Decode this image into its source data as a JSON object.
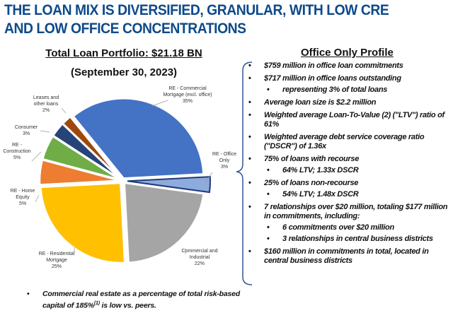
{
  "title": {
    "line1": "THE LOAN MIX IS DIVERSIFIED, GRANULAR, WITH LOW CRE",
    "line2": "AND LOW OFFICE CONCENTRATIONS"
  },
  "chart_data": {
    "type": "pie",
    "title": "Total Loan Portfolio: $21.18 BN",
    "subtitle": "(September 30, 2023)",
    "slices": [
      {
        "label_lines": [
          "RE - Commercial",
          "Mortgage (excl. office)"
        ],
        "pct_label": "35%",
        "value": 35,
        "color": "#4472C4"
      },
      {
        "label_lines": [
          "RE - Office",
          "Only"
        ],
        "pct_label": "3%",
        "value": 3,
        "color": "#8FAADC",
        "outline": "#1F3C7A",
        "highlighted": true
      },
      {
        "label_lines": [
          "Commercial and",
          "Industrial"
        ],
        "pct_label": "22%",
        "value": 22,
        "color": "#A5A5A5"
      },
      {
        "label_lines": [
          "RE - Residential",
          "Mortgage"
        ],
        "pct_label": "25%",
        "value": 25,
        "color": "#FFC000"
      },
      {
        "label_lines": [
          "RE - Home",
          "Equity"
        ],
        "pct_label": "5%",
        "value": 5,
        "color": "#ED7D31"
      },
      {
        "label_lines": [
          "RE -",
          "Construction"
        ],
        "pct_label": "5%",
        "value": 5,
        "color": "#70AD47"
      },
      {
        "label_lines": [
          "Consumer"
        ],
        "pct_label": "3%",
        "value": 3,
        "color": "#264478"
      },
      {
        "label_lines": [
          "Leases and",
          "other loans"
        ],
        "pct_label": "2%",
        "value": 2,
        "color": "#9E480E"
      }
    ]
  },
  "footnote": "Commercial real estate as a percentage of total risk-based capital of 185%(1) is low vs. peers.",
  "footnote_parts": {
    "a": "Commercial real estate as a percentage of total risk-based capital of 185%",
    "sup": "(1)",
    "b": " is low vs. peers."
  },
  "profile": {
    "title": "Office Only Profile",
    "bracket_color": "#2F5597",
    "bullets": [
      {
        "text": "$759 million in office loan commitments",
        "level": 1
      },
      {
        "text": "$717 million in office loans outstanding",
        "level": 1
      },
      {
        "text": "representing 3% of total loans",
        "level": 2
      },
      {
        "text": "Average loan size is $2.2 million",
        "level": 1
      },
      {
        "text": "Weighted average Loan-To-Value (2) (\"LTV\") ratio of 61%",
        "level": 1
      },
      {
        "text": "Weighted average debt service coverage ratio (\"DSCR\") of 1.36x",
        "level": 1
      },
      {
        "text": "75% of loans with recourse",
        "level": 1
      },
      {
        "text": "64% LTV; 1.33x DSCR",
        "level": 2
      },
      {
        "text": "25% of loans non-recourse",
        "level": 1
      },
      {
        "text": "54% LTV; 1.48x DSCR",
        "level": 2
      },
      {
        "text": "7 relationships over $20 million, totaling $177 million in commitments, including:",
        "level": 1
      },
      {
        "text": "6 commitments over $20 million",
        "level": 2
      },
      {
        "text": "3 relationships in central business districts",
        "level": 2
      },
      {
        "text": "$160 million in commitments in total, located in central business districts",
        "level": 1
      }
    ]
  }
}
